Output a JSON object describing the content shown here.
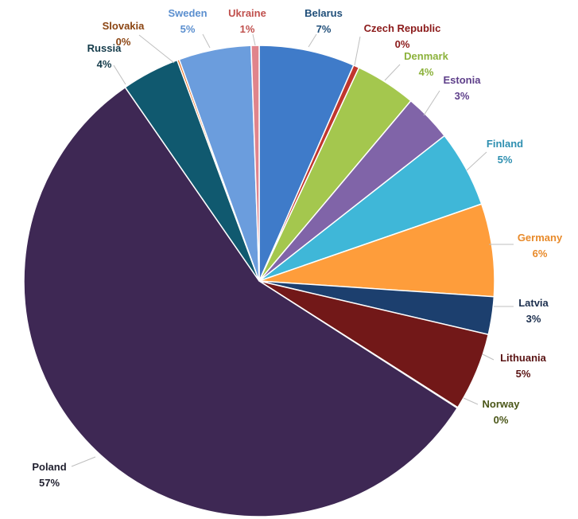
{
  "chart_data": {
    "type": "pie",
    "title": "",
    "slices": [
      {
        "name": "Belarus",
        "value": 6.61,
        "label": "7%",
        "color": "#3F7BC9",
        "text_color": "#1F4E79"
      },
      {
        "name": "Czech Republic",
        "value": 0.4,
        "label": "0%",
        "color": "#C0362E",
        "text_color": "#8B1A1A"
      },
      {
        "name": "Denmark",
        "value": 4.2,
        "label": "4%",
        "color": "#A4C74E",
        "text_color": "#8CB23C"
      },
      {
        "name": "Estonia",
        "value": 3.3,
        "label": "3%",
        "color": "#8064A8",
        "text_color": "#5E3F8A"
      },
      {
        "name": "Finland",
        "value": 5.3,
        "label": "5%",
        "color": "#3FB7D8",
        "text_color": "#2E8FB0"
      },
      {
        "name": "Germany",
        "value": 6.4,
        "label": "6%",
        "color": "#FE9D3B",
        "text_color": "#E88A2A"
      },
      {
        "name": "Latvia",
        "value": 2.6,
        "label": "3%",
        "color": "#1C3F6E",
        "text_color": "#1C2F4E"
      },
      {
        "name": "Lithuania",
        "value": 5.4,
        "label": "5%",
        "color": "#721818",
        "text_color": "#5A1414"
      },
      {
        "name": "Norway",
        "value": 0.05,
        "label": "0%",
        "color": "#4E5A1E",
        "text_color": "#4A5618"
      },
      {
        "name": "Poland",
        "value": 56.6,
        "label": "57%",
        "color": "#3E2854",
        "text_color": "#1F1F2E"
      },
      {
        "name": "Russia",
        "value": 4.0,
        "label": "4%",
        "color": "#10596F",
        "text_color": "#143B4A"
      },
      {
        "name": "Slovakia",
        "value": 0.15,
        "label": "0%",
        "color": "#E86E1F",
        "text_color": "#8B4513"
      },
      {
        "name": "Sweden",
        "value": 5.0,
        "label": "5%",
        "color": "#6B9DDD",
        "text_color": "#5B8FCF"
      },
      {
        "name": "Ukraine",
        "value": 0.55,
        "label": "1%",
        "color": "#E0848C",
        "text_color": "#C0504D"
      }
    ]
  }
}
